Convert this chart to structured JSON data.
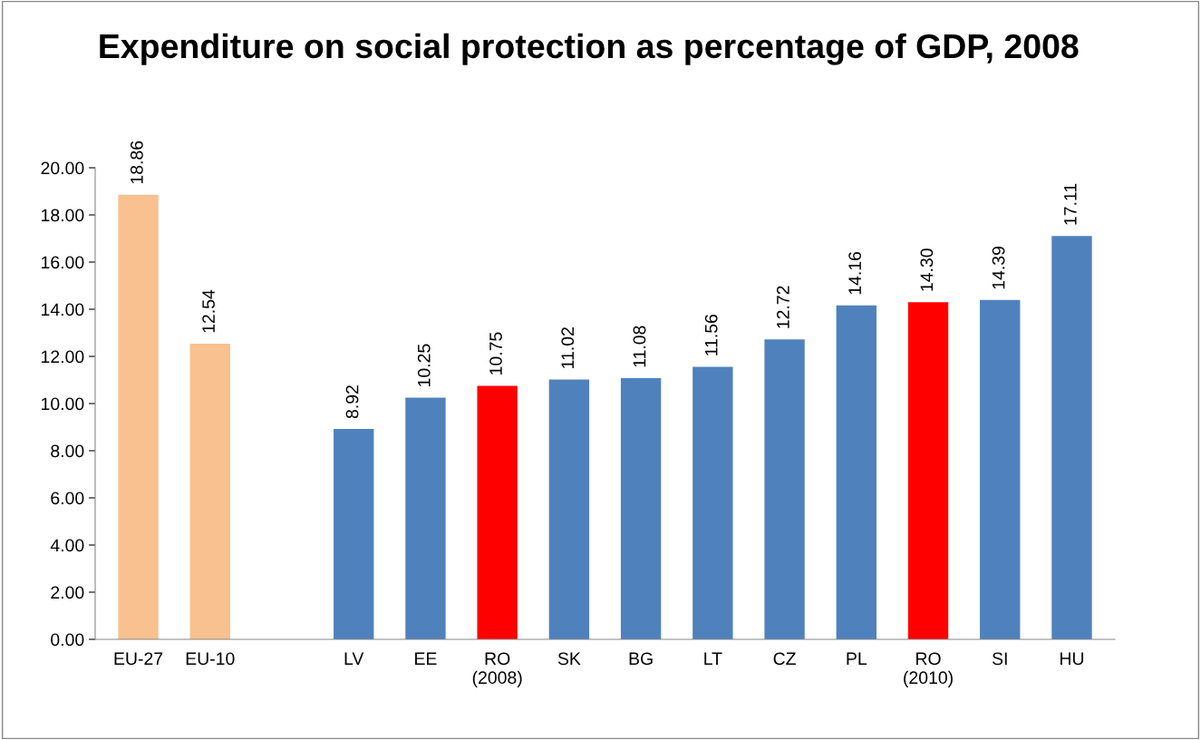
{
  "chart_data": {
    "type": "bar",
    "title": "Expenditure on social protection as percentage of GDP, 2008",
    "categories": [
      "EU-27",
      "EU-10",
      null,
      "LV",
      "EE",
      "RO\n(2008)",
      "SK",
      "BG",
      "LT",
      "CZ",
      "PL",
      "RO\n(2010)",
      "SI",
      "HU"
    ],
    "values": [
      18.86,
      12.54,
      null,
      8.92,
      10.25,
      10.75,
      11.02,
      11.08,
      11.56,
      12.72,
      14.16,
      14.3,
      14.39,
      17.11
    ],
    "colors": [
      "#f9c090",
      "#f9c090",
      null,
      "#4f81bd",
      "#4f81bd",
      "#ff0000",
      "#4f81bd",
      "#4f81bd",
      "#4f81bd",
      "#4f81bd",
      "#4f81bd",
      "#ff0000",
      "#4f81bd",
      "#4f81bd"
    ],
    "value_labels": [
      "18.86",
      "12.54",
      null,
      "8.92",
      "10.25",
      "10.75",
      "11.02",
      "11.08",
      "11.56",
      "12.72",
      "14.16",
      "14.30",
      "14.39",
      "17.11"
    ],
    "ylim": [
      0,
      20
    ],
    "yticks": [
      {
        "value": 0,
        "label": "0.00"
      },
      {
        "value": 2,
        "label": "2.00"
      },
      {
        "value": 4,
        "label": "4.00"
      },
      {
        "value": 6,
        "label": "6.00"
      },
      {
        "value": 8,
        "label": "8.00"
      },
      {
        "value": 10,
        "label": "10.00"
      },
      {
        "value": 12,
        "label": "12.00"
      },
      {
        "value": 14,
        "label": "14.00"
      },
      {
        "value": 16,
        "label": "16.00"
      },
      {
        "value": 18,
        "label": "18.00"
      },
      {
        "value": 20,
        "label": "20.00"
      }
    ],
    "grid": false,
    "legend": false
  }
}
